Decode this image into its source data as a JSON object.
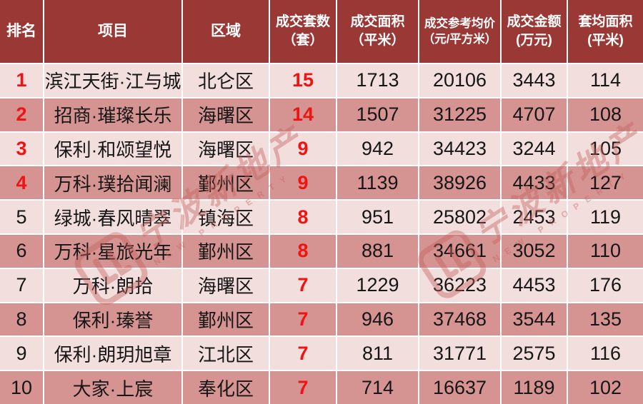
{
  "chart_data": {
    "type": "table",
    "columns": [
      {
        "line1": "排名",
        "line2": ""
      },
      {
        "line1": "项目",
        "line2": ""
      },
      {
        "line1": "区域",
        "line2": ""
      },
      {
        "line1": "成交套数",
        "line2": "（套）"
      },
      {
        "line1": "成交面积",
        "line2": "（平米）"
      },
      {
        "line1": "成交参考均价",
        "line2": "（元/平方米）"
      },
      {
        "line1": "成交金额",
        "line2": "(万元)"
      },
      {
        "line1": "套均面积",
        "line2": "(平米)"
      }
    ],
    "rows": [
      {
        "rank": "1",
        "project": "滨江天街·江与城",
        "district": "北仑区",
        "units": "15",
        "area": "1713",
        "avg_price": "20106",
        "amount": "3443",
        "avg_area": "114",
        "rank_red": true
      },
      {
        "rank": "2",
        "project": "招商·璀璨长乐",
        "district": "海曙区",
        "units": "14",
        "area": "1507",
        "avg_price": "31225",
        "amount": "4707",
        "avg_area": "108",
        "rank_red": true
      },
      {
        "rank": "3",
        "project": "保利·和颂望悦",
        "district": "海曙区",
        "units": "9",
        "area": "942",
        "avg_price": "34423",
        "amount": "3244",
        "avg_area": "105",
        "rank_red": true
      },
      {
        "rank": "4",
        "project": "万科·璞拾闻澜",
        "district": "鄞州区",
        "units": "9",
        "area": "1139",
        "avg_price": "38926",
        "amount": "4433",
        "avg_area": "127",
        "rank_red": true
      },
      {
        "rank": "5",
        "project": "绿城·春风晴翠",
        "district": "镇海区",
        "units": "8",
        "area": "951",
        "avg_price": "25802",
        "amount": "2453",
        "avg_area": "119",
        "rank_red": false
      },
      {
        "rank": "6",
        "project": "万科·星旅光年",
        "district": "鄞州区",
        "units": "8",
        "area": "881",
        "avg_price": "34661",
        "amount": "3052",
        "avg_area": "110",
        "rank_red": false
      },
      {
        "rank": "7",
        "project": "万科·朗拾",
        "district": "海曙区",
        "units": "7",
        "area": "1229",
        "avg_price": "36223",
        "amount": "4453",
        "avg_area": "176",
        "rank_red": false
      },
      {
        "rank": "8",
        "project": "保利·瑧誉",
        "district": "鄞州区",
        "units": "7",
        "area": "946",
        "avg_price": "37468",
        "amount": "3544",
        "avg_area": "135",
        "rank_red": false
      },
      {
        "rank": "9",
        "project": "保利·朗玥旭章",
        "district": "江北区",
        "units": "7",
        "area": "811",
        "avg_price": "31771",
        "amount": "2575",
        "avg_area": "116",
        "rank_red": false
      },
      {
        "rank": "10",
        "project": "大家·上宸",
        "district": "奉化区",
        "units": "7",
        "area": "714",
        "avg_price": "16637",
        "amount": "1189",
        "avg_area": "102",
        "rank_red": false
      }
    ]
  },
  "watermark": {
    "brand_cn": "宁波新地产",
    "brand_en": "NEW PROPERTY"
  },
  "colors": {
    "header_bg": "#9a3836",
    "row_light": "#f2dedd",
    "row_dark": "#d59391",
    "header_text": "#ffffff",
    "accent_red": "#ee1414",
    "body_text": "#161616",
    "gridline": "#ffffff",
    "watermark_color": "#c4615c"
  }
}
